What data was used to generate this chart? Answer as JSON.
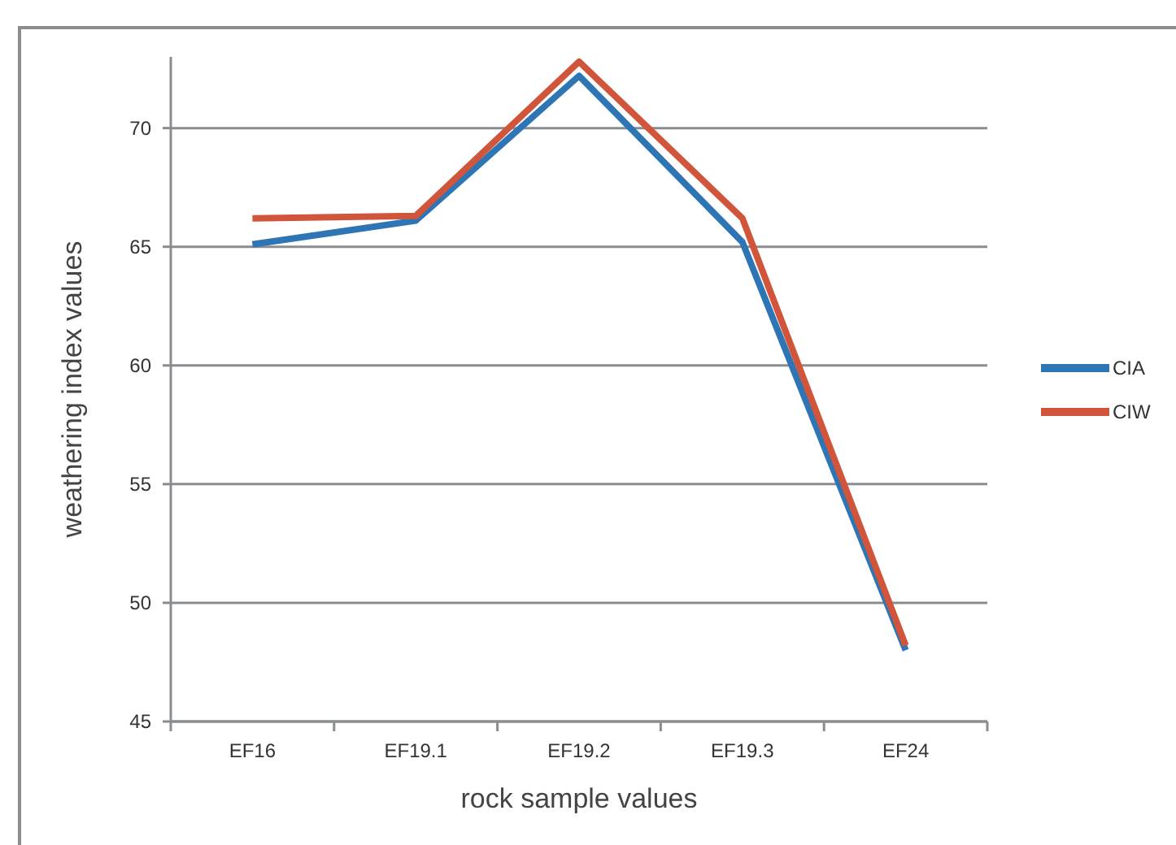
{
  "chart_data": {
    "type": "line",
    "xlabel": "rock sample values",
    "ylabel": "weathering index values",
    "categories": [
      "EF16",
      "EF19.1",
      "EF19.2",
      "EF19.3",
      "EF24"
    ],
    "series": [
      {
        "name": "CIA",
        "color": "#2e75b6",
        "values": [
          65.1,
          66.1,
          72.2,
          65.2,
          48.0
        ]
      },
      {
        "name": "CIW",
        "color": "#d0553a",
        "values": [
          66.2,
          66.3,
          72.8,
          66.2,
          48.2
        ]
      }
    ],
    "ylim": [
      45,
      73
    ],
    "yticks": [
      45,
      50,
      55,
      60,
      65,
      70
    ],
    "grid": "y",
    "legend": "right",
    "marker": "none",
    "line_style": "solid"
  }
}
